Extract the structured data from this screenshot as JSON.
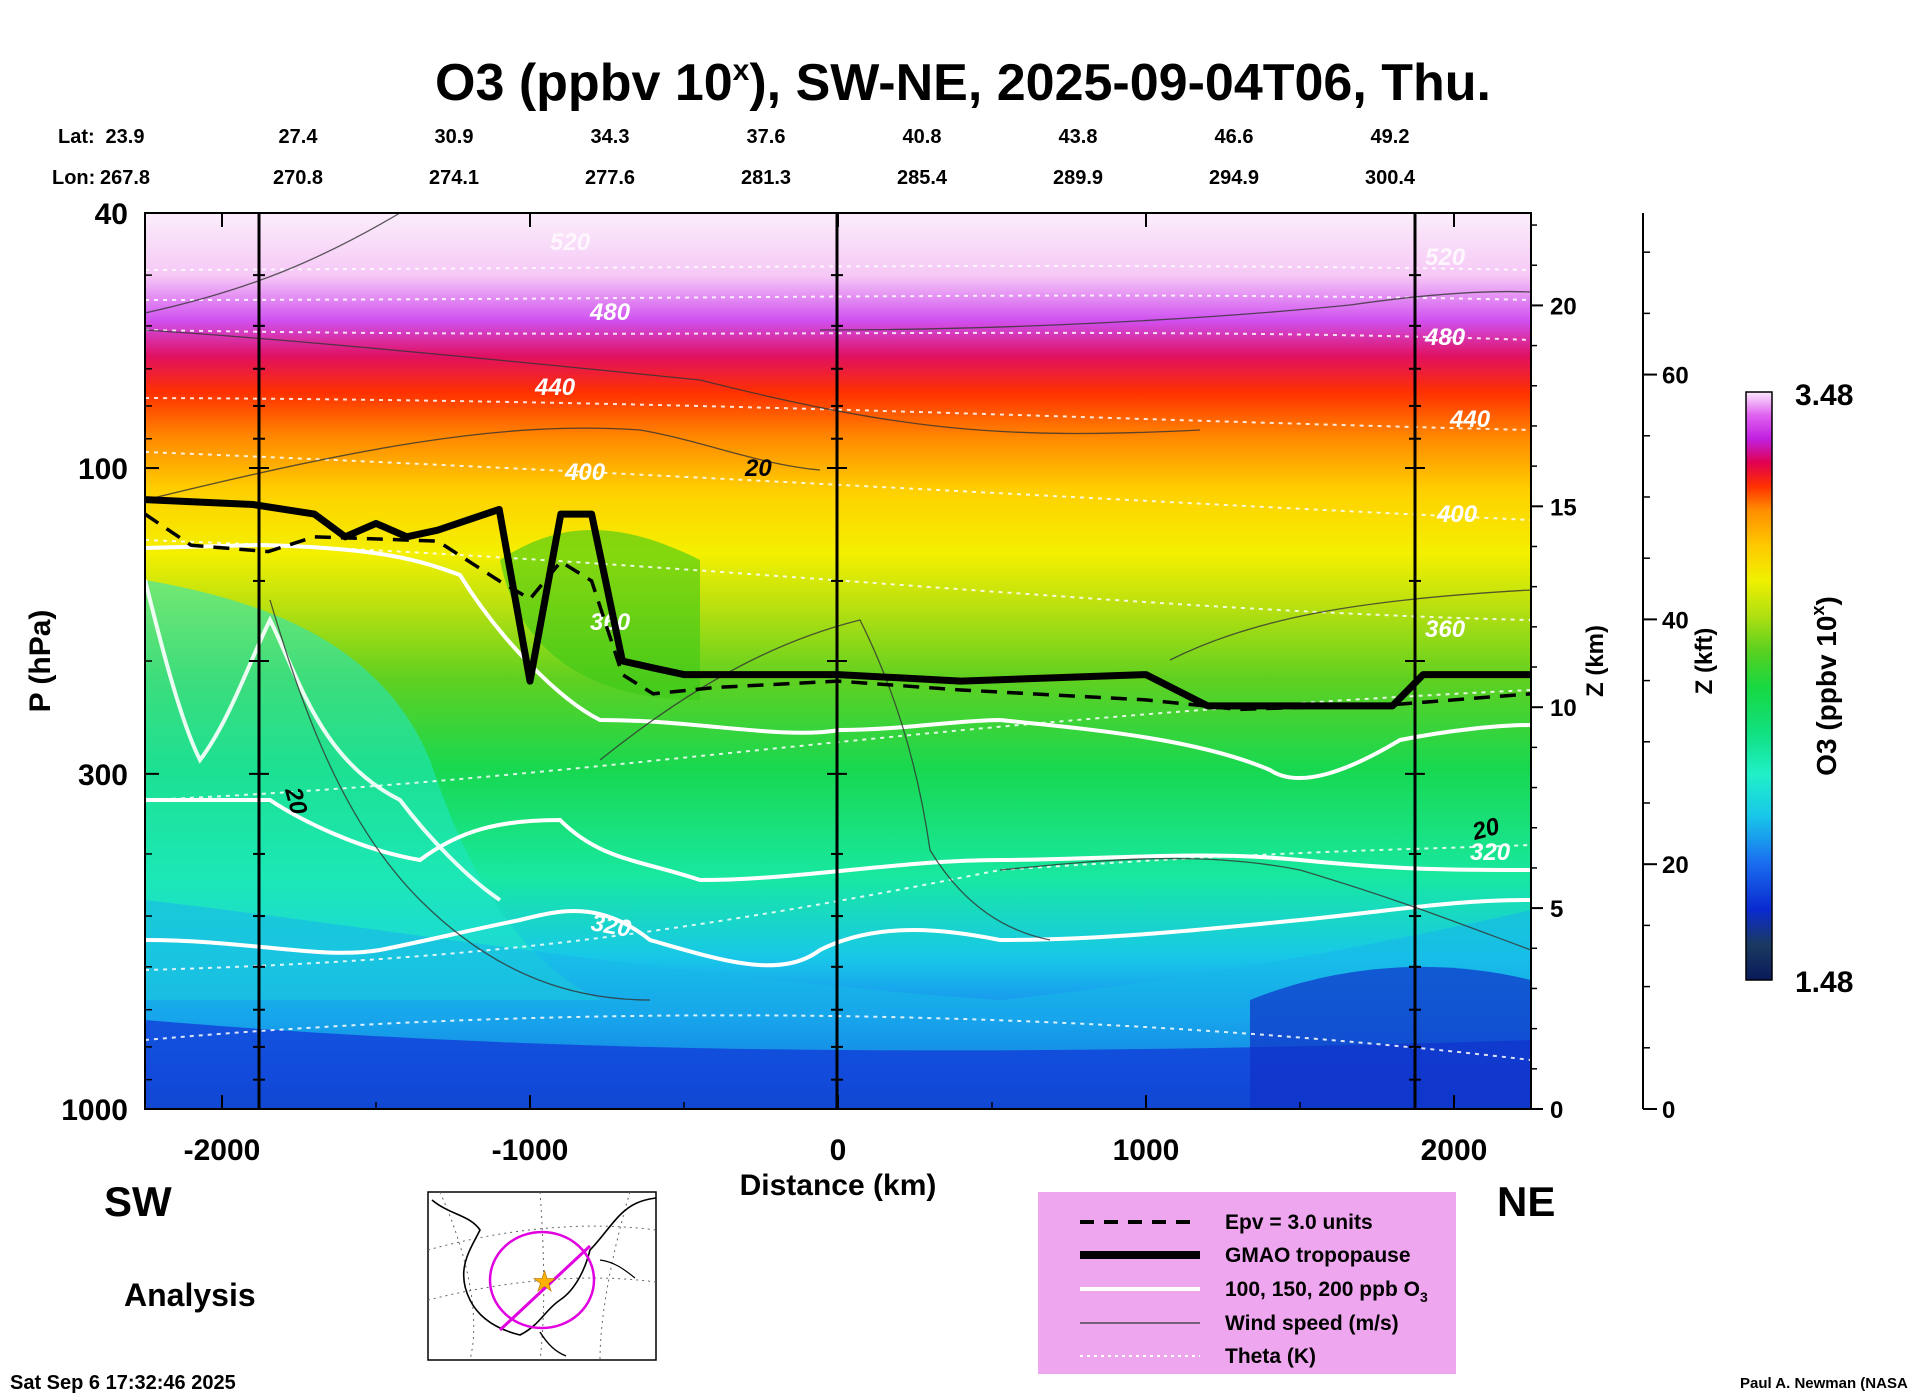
{
  "title": {
    "main": "O3 (ppbv 10",
    "sup": "x",
    "tail": "), SW-NE, 2025-09-04T06, Thu."
  },
  "lat_label": "Lat:",
  "lon_label": "Lon:",
  "lats": [
    "23.9",
    "27.4",
    "30.9",
    "34.3",
    "37.6",
    "40.8",
    "43.8",
    "46.6",
    "49.2"
  ],
  "lons": [
    "267.8",
    "270.8",
    "274.1",
    "277.6",
    "281.3",
    "285.4",
    "289.9",
    "294.9",
    "300.4"
  ],
  "direction_left": "SW",
  "direction_right": "NE",
  "analysis_label": "Analysis",
  "timestamp": "Sat Sep  6 17:32:46 2025",
  "credit": "Paul A. Newman (NASA",
  "colors": {
    "ozone_ramp": [
      "#0a1a5a",
      "#0a2ad0",
      "#1a6ef0",
      "#18c8e8",
      "#20f0c8",
      "#10e080",
      "#18d840",
      "#5ad020",
      "#b0e010",
      "#f0f000",
      "#ffc800",
      "#ff8c00",
      "#ff3000",
      "#e00050",
      "#c020e0",
      "#e060f0",
      "#f4b0f4",
      "#fbe8fb"
    ],
    "legend_box": "#eea6ee",
    "map_track": "#e000e0",
    "map_star": "#ffb000"
  },
  "chart_data": {
    "type": "heatmap",
    "title": "O3 (ppbv 10^x), SW-NE, 2025-09-04T06, Thu.",
    "xlabel": "Distance (km)",
    "ylabel": "P (hPa)",
    "ylabel_right_km": "Z (km)",
    "ylabel_right_kft": "Z (kft)",
    "xlim": [
      -2250,
      2250
    ],
    "ylim": [
      1000,
      40
    ],
    "y_scale": "log",
    "x_ticks": [
      "-2000",
      "-1000",
      "0",
      "1000",
      "2000"
    ],
    "y_ticks": [
      "40",
      "100",
      "300",
      "1000"
    ],
    "z_km_ticks": [
      "0",
      "5",
      "10",
      "15",
      "20"
    ],
    "z_kft_ticks": [
      "0",
      "20",
      "40",
      "60"
    ],
    "colorbar": {
      "label": "O3 (ppbv 10^x)",
      "min": "1.48",
      "max": "3.48"
    },
    "tropopause_gmao": [
      [
        -2250,
        112
      ],
      [
        -1900,
        114
      ],
      [
        -1700,
        118
      ],
      [
        -1600,
        128
      ],
      [
        -1500,
        122
      ],
      [
        -1400,
        128
      ],
      [
        -1300,
        125
      ],
      [
        -1100,
        116
      ],
      [
        -1000,
        215
      ],
      [
        -900,
        118
      ],
      [
        -800,
        118
      ],
      [
        -700,
        200
      ],
      [
        -600,
        205
      ],
      [
        -500,
        210
      ],
      [
        -200,
        210
      ],
      [
        0,
        210
      ],
      [
        400,
        215
      ],
      [
        1000,
        210
      ],
      [
        1200,
        235
      ],
      [
        1800,
        235
      ],
      [
        1900,
        210
      ],
      [
        2250,
        210
      ]
    ],
    "epv_3units": [
      [
        -2250,
        118
      ],
      [
        -2100,
        132
      ],
      [
        -1850,
        135
      ],
      [
        -1700,
        128
      ],
      [
        -1300,
        130
      ],
      [
        -1100,
        150
      ],
      [
        -1000,
        160
      ],
      [
        -900,
        140
      ],
      [
        -800,
        150
      ],
      [
        -700,
        210
      ],
      [
        -600,
        225
      ],
      [
        -400,
        220
      ],
      [
        0,
        215
      ],
      [
        400,
        222
      ],
      [
        1000,
        230
      ],
      [
        1300,
        238
      ],
      [
        1800,
        234
      ],
      [
        2250,
        225
      ]
    ],
    "o3_contours_ppb": [
      "100",
      "150",
      "200"
    ],
    "theta_labels_K": [
      "320",
      "360",
      "400",
      "440",
      "480",
      "520"
    ],
    "wind_speed_labels_ms": [
      "20"
    ],
    "legend": [
      "Epv = 3.0 units",
      "GMAO tropopause",
      "100, 150, 200 ppb O",
      "Wind speed (m/s)",
      "Theta (K)"
    ],
    "legend_sub": "3"
  }
}
